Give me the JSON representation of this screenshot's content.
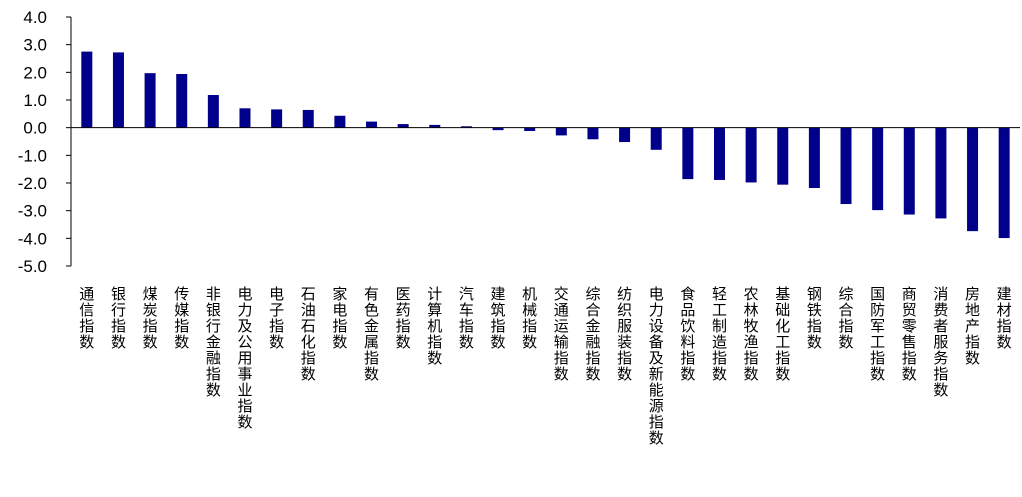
{
  "chart_data": {
    "type": "bar",
    "title": "",
    "xlabel": "",
    "ylabel": "",
    "ylim": [
      -5.0,
      4.0
    ],
    "yticks": [
      "4.0",
      "3.0",
      "2.0",
      "1.0",
      "0.0",
      "-1.0",
      "-2.0",
      "-3.0",
      "-4.0",
      "-5.0"
    ],
    "ytick_values": [
      4,
      3,
      2,
      1,
      0,
      -1,
      -2,
      -3,
      -4,
      -5
    ],
    "grid": false,
    "legend": "none",
    "bar_color": "#00008B",
    "categories": [
      "通信指数",
      "银行指数",
      "煤炭指数",
      "传媒指数",
      "非银行金融指数",
      "电力及公用事业指数",
      "电子指数",
      "石油石化指数",
      "家电指数",
      "有色金属指数",
      "医药指数",
      "计算机指数",
      "汽车指数",
      "建筑指数",
      "机械指数",
      "交通运输指数",
      "综合金融指数",
      "纺织服装指数",
      "电力设备及新能源指数",
      "食品饮料指数",
      "轻工制造指数",
      "农林牧渔指数",
      "基础化工指数",
      "钢铁指数",
      "综合指数",
      "国防军工指数",
      "商贸零售指数",
      "消费者服务指数",
      "房地产指数",
      "建材指数"
    ],
    "values": [
      2.75,
      2.72,
      1.97,
      1.94,
      1.18,
      0.7,
      0.66,
      0.64,
      0.43,
      0.22,
      0.13,
      0.1,
      0.05,
      -0.09,
      -0.12,
      -0.28,
      -0.42,
      -0.52,
      -0.8,
      -1.86,
      -1.89,
      -1.98,
      -2.06,
      -2.18,
      -2.76,
      -2.98,
      -3.14,
      -3.28,
      -3.74,
      -3.99
    ]
  }
}
